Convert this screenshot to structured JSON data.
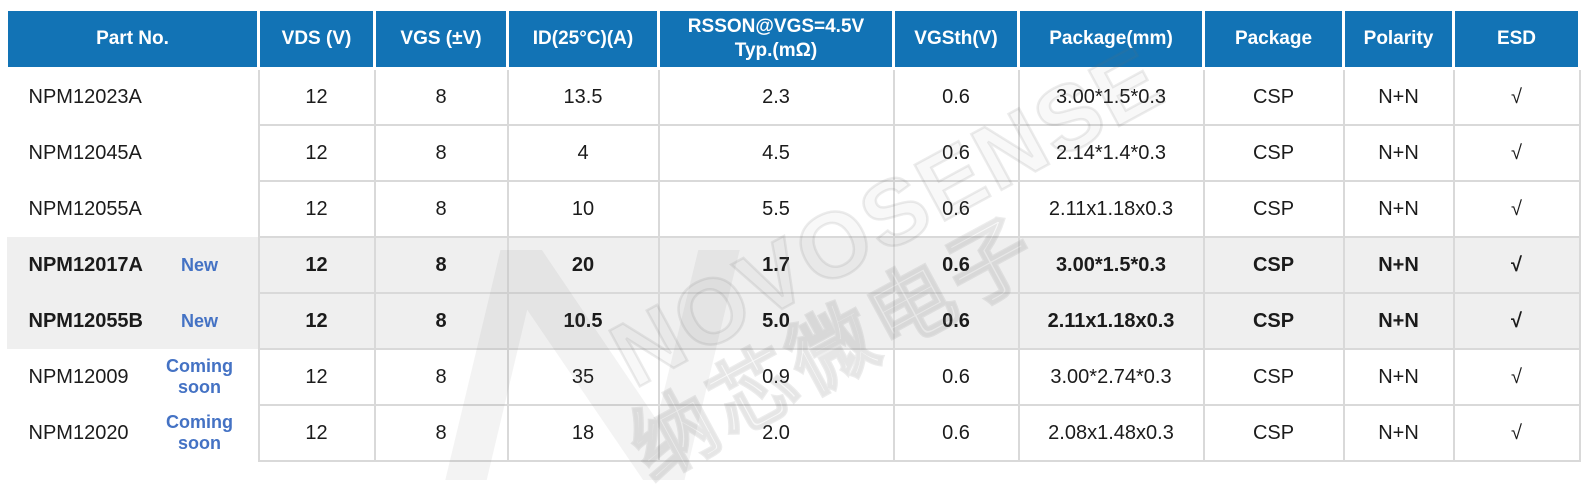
{
  "table": {
    "columns": [
      {
        "key": "part",
        "label": "Part No."
      },
      {
        "key": "vds",
        "label": "VDS (V)"
      },
      {
        "key": "vgs",
        "label": "VGS (±V)"
      },
      {
        "key": "id",
        "label": "ID(25°C)(A)"
      },
      {
        "key": "rsson",
        "label": "RSSON@VGS=4.5V\nTyp.(mΩ)"
      },
      {
        "key": "vgsth",
        "label": "VGSth(V)"
      },
      {
        "key": "package_mm",
        "label": "Package(mm)"
      },
      {
        "key": "package",
        "label": "Package"
      },
      {
        "key": "polarity",
        "label": "Polarity"
      },
      {
        "key": "esd",
        "label": "ESD"
      }
    ],
    "rows": [
      {
        "part": "NPM12023A",
        "badge": "",
        "highlight": false,
        "vds": "12",
        "vgs": "8",
        "id": "13.5",
        "rsson": "2.3",
        "vgsth": "0.6",
        "package_mm": "3.00*1.5*0.3",
        "package": "CSP",
        "polarity": "N+N",
        "esd": "√"
      },
      {
        "part": "NPM12045A",
        "badge": "",
        "highlight": false,
        "vds": "12",
        "vgs": "8",
        "id": "4",
        "rsson": "4.5",
        "vgsth": "0.6",
        "package_mm": "2.14*1.4*0.3",
        "package": "CSP",
        "polarity": "N+N",
        "esd": "√"
      },
      {
        "part": "NPM12055A",
        "badge": "",
        "highlight": false,
        "vds": "12",
        "vgs": "8",
        "id": "10",
        "rsson": "5.5",
        "vgsth": "0.6",
        "package_mm": "2.11x1.18x0.3",
        "package": "CSP",
        "polarity": "N+N",
        "esd": "√"
      },
      {
        "part": "NPM12017A",
        "badge": "New",
        "highlight": true,
        "vds": "12",
        "vgs": "8",
        "id": "20",
        "rsson": "1.7",
        "vgsth": "0.6",
        "package_mm": "3.00*1.5*0.3",
        "package": "CSP",
        "polarity": "N+N",
        "esd": "√"
      },
      {
        "part": "NPM12055B",
        "badge": "New",
        "highlight": true,
        "vds": "12",
        "vgs": "8",
        "id": "10.5",
        "rsson": "5.0",
        "vgsth": "0.6",
        "package_mm": "2.11x1.18x0.3",
        "package": "CSP",
        "polarity": "N+N",
        "esd": "√"
      },
      {
        "part": "NPM12009",
        "badge": "Coming soon",
        "highlight": false,
        "vds": "12",
        "vgs": "8",
        "id": "35",
        "rsson": "0.9",
        "vgsth": "0.6",
        "package_mm": "3.00*2.74*0.3",
        "package": "CSP",
        "polarity": "N+N",
        "esd": "√"
      },
      {
        "part": "NPM12020",
        "badge": "Coming soon",
        "highlight": false,
        "vds": "12",
        "vgs": "8",
        "id": "18",
        "rsson": "2.0",
        "vgsth": "0.6",
        "package_mm": "2.08x1.48x0.3",
        "package": "CSP",
        "polarity": "N+N",
        "esd": "√"
      }
    ]
  },
  "watermark": {
    "brand": "NOVOSENSE",
    "chinese": "纳芯微电子",
    "logo": "stylized-N"
  },
  "colors": {
    "header_bg": "#1273b5",
    "header_text": "#ffffff",
    "badge_blue": "#4472c4",
    "highlight_row_bg": "#efefef",
    "grid_border": "#d9d9d9",
    "body_text": "#1b1b1b"
  }
}
